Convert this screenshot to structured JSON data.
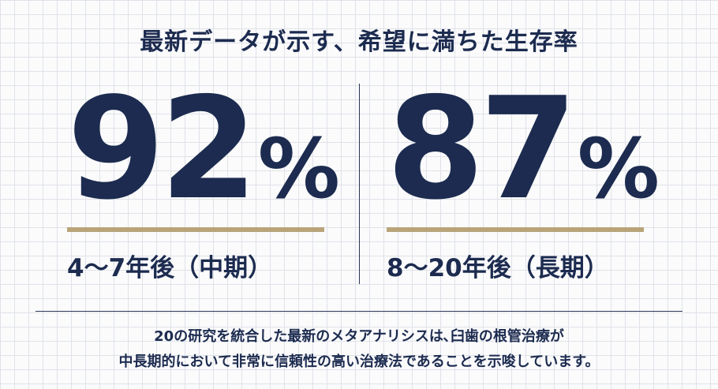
{
  "header": {
    "title": "最新データが示す、希望に満ちた生存率"
  },
  "stats": [
    {
      "value": "92",
      "unit": "%",
      "label": "4〜7年後（中期）"
    },
    {
      "value": "87",
      "unit": "%",
      "label": "8〜20年後（長期）"
    }
  ],
  "footnote": {
    "lines": [
      "20の研究を統合した最新のメタアナリシスは､臼歯の根管治療が",
      "中長期的において非常に信頼性の高い治療法であることを示唆しています。"
    ]
  }
}
